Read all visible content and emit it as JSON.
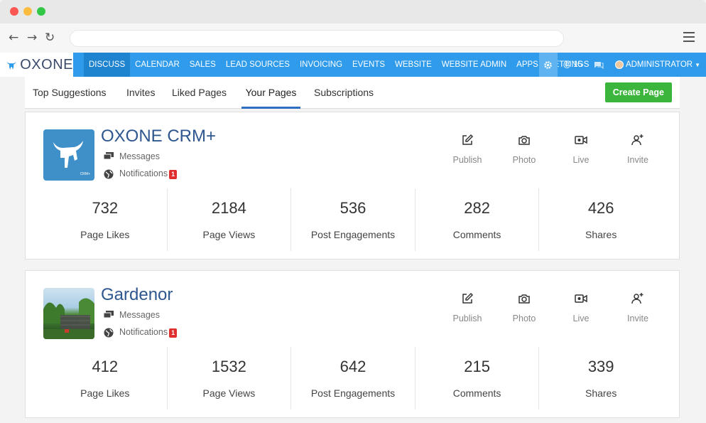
{
  "navbar": {
    "logo_text": "OXONE",
    "items": [
      "DISCUSS",
      "CALENDAR",
      "SALES",
      "LEAD SOURCES",
      "INVOICING",
      "EVENTS",
      "WEBSITE",
      "WEBSITE ADMIN",
      "APPS",
      "SETTINGS"
    ],
    "active_item": "DISCUSS",
    "mentions_count": "15",
    "user": "ADMINISTRATOR",
    "accent_color": "#2f9bea"
  },
  "tabs": [
    "Top Suggestions",
    "Invites",
    "Liked Pages",
    "Your Pages",
    "Subscriptions"
  ],
  "active_tab": "Your Pages",
  "create_button": "Create Page",
  "actions": [
    "Publish",
    "Photo",
    "Live",
    "Invite"
  ],
  "pages": [
    {
      "name": "OXONE CRM+",
      "thumb_text": "CRM+",
      "messages_label": "Messages",
      "notifications_label": "Notifications",
      "notifications_count": "1",
      "stats": [
        {
          "value": "732",
          "label": "Page Likes"
        },
        {
          "value": "2184",
          "label": "Page Views"
        },
        {
          "value": "536",
          "label": "Post Engagements"
        },
        {
          "value": "282",
          "label": "Comments"
        },
        {
          "value": "426",
          "label": "Shares"
        }
      ]
    },
    {
      "name": "Gardenor",
      "messages_label": "Messages",
      "notifications_label": "Notifications",
      "notifications_count": "1",
      "stats": [
        {
          "value": "412",
          "label": "Page Likes"
        },
        {
          "value": "1532",
          "label": "Page Views"
        },
        {
          "value": "642",
          "label": "Post Engagements"
        },
        {
          "value": "215",
          "label": "Comments"
        },
        {
          "value": "339",
          "label": "Shares"
        }
      ]
    }
  ]
}
